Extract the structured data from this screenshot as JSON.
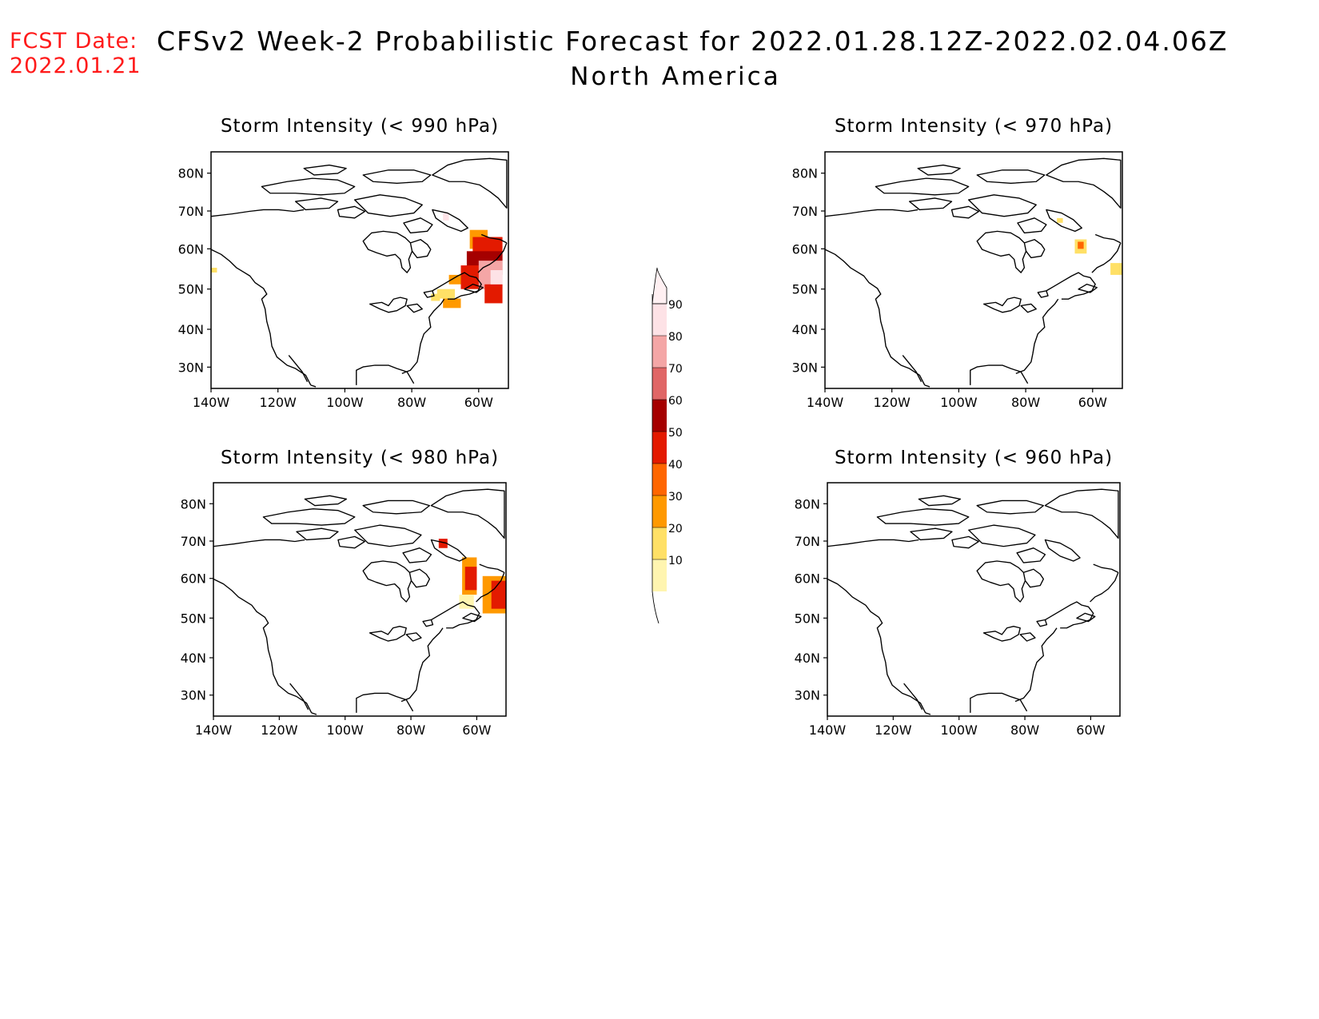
{
  "header": {
    "fcst_label": "FCST Date:",
    "fcst_date": "2022.01.21",
    "title": "CFSv2 Week-2 Probabilistic Forecast for 2022.01.28.12Z-2022.02.04.06Z",
    "subtitle": "North America"
  },
  "axes": {
    "lat_ticks": [
      "80N",
      "70N",
      "60N",
      "50N",
      "40N",
      "30N"
    ],
    "lon_ticks": [
      "140W",
      "120W",
      "100W",
      "80W",
      "60W"
    ]
  },
  "panels": [
    {
      "id": "p990",
      "title": "Storm Intensity (< 990 hPa)"
    },
    {
      "id": "p970",
      "title": "Storm Intensity (< 970 hPa)"
    },
    {
      "id": "p980",
      "title": "Storm Intensity (< 980 hPa)"
    },
    {
      "id": "p960",
      "title": "Storm Intensity (< 960 hPa)"
    }
  ],
  "colorbar": {
    "labels": [
      "90",
      "80",
      "70",
      "60",
      "50",
      "40",
      "30",
      "20",
      "10"
    ],
    "colors": [
      "#fde2e6",
      "#f4a6a6",
      "#e06666",
      "#a50000",
      "#e31a00",
      "#ff6600",
      "#ff9900",
      "#ffe066",
      "#fff5b0"
    ]
  }
}
